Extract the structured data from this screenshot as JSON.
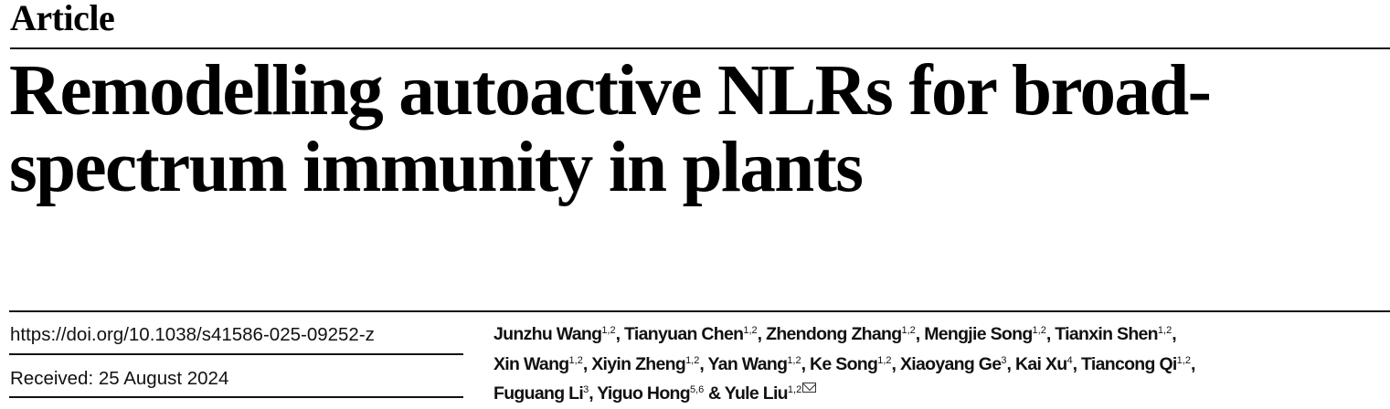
{
  "article_type": "Article",
  "title_lines": [
    "Remodelling autoactive NLRs for broad-",
    "spectrum immunity in plants"
  ],
  "doi": "https://doi.org/10.1038/s41586-025-09252-z",
  "received": "Received: 25 August 2024",
  "authors": [
    {
      "name": "Junzhu Wang",
      "aff": "1,2",
      "sep": ", "
    },
    {
      "name": "Tianyuan Chen",
      "aff": "1,2",
      "sep": ", "
    },
    {
      "name": "Zhendong Zhang",
      "aff": "1,2",
      "sep": ", "
    },
    {
      "name": "Mengjie Song",
      "aff": "1,2",
      "sep": ", "
    },
    {
      "name": "Tianxin Shen",
      "aff": "1,2",
      "sep": ","
    },
    {
      "name": "Xin Wang",
      "aff": "1,2",
      "sep": ", "
    },
    {
      "name": "Xiyin Zheng",
      "aff": "1,2",
      "sep": ", "
    },
    {
      "name": "Yan Wang",
      "aff": "1,2",
      "sep": ", "
    },
    {
      "name": "Ke Song",
      "aff": "1,2",
      "sep": ", "
    },
    {
      "name": "Xiaoyang Ge",
      "aff": "3",
      "sep": ", "
    },
    {
      "name": "Kai Xu",
      "aff": "4",
      "sep": ", "
    },
    {
      "name": "Tiancong Qi",
      "aff": "1,2",
      "sep": ","
    },
    {
      "name": "Fuguang Li",
      "aff": "3",
      "sep": ", "
    },
    {
      "name": "Yiguo Hong",
      "aff": "5,6",
      "sep": " & "
    },
    {
      "name": "Yule Liu",
      "aff": "1,2",
      "sep": ""
    }
  ],
  "corresponding_icon": "envelope-icon"
}
